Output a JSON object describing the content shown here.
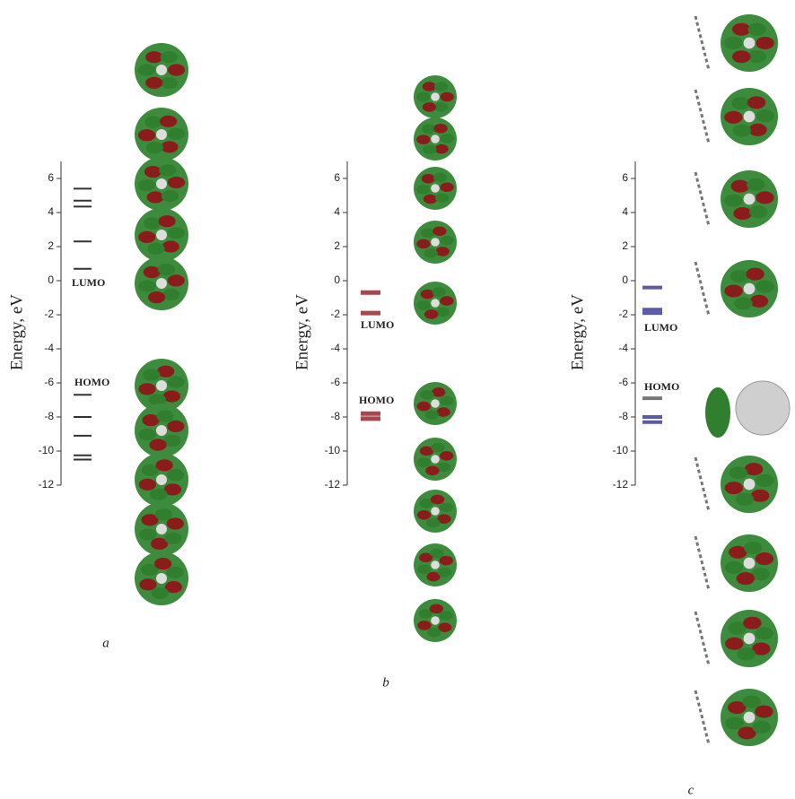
{
  "chart_data": [
    {
      "type": "energy-levels",
      "panel_label": "a",
      "ylabel": "Energy, eV",
      "lumo_label": "LUMO",
      "homo_label": "HOMO",
      "ylim": [
        -12,
        7
      ],
      "yticks": [
        6,
        4,
        2,
        0,
        -2,
        -4,
        -6,
        -8,
        -10,
        -12
      ],
      "values": [
        5.4,
        4.7,
        4.35,
        2.3,
        0.7,
        -6.7,
        -8.0,
        -9.1,
        -10.25,
        -10.5
      ],
      "colors": [
        "#333333",
        "#333333",
        "#333333",
        "#333333",
        "#333333",
        "#333333",
        "#333333",
        "#333333",
        "#333333",
        "#333333"
      ]
    },
    {
      "type": "energy-levels",
      "panel_label": "b",
      "ylabel": "Energy, eV",
      "lumo_label": "LUMO",
      "homo_label": "HOMO",
      "ylim": [
        -12,
        7
      ],
      "yticks": [
        6,
        4,
        2,
        0,
        -2,
        -4,
        -6,
        -8,
        -10,
        -12
      ],
      "values": [
        -0.7,
        -1.9,
        -7.8,
        -8.1
      ],
      "colors": [
        "#a8464f",
        "#a8464f",
        "#a8464f",
        "#a8464f"
      ]
    },
    {
      "type": "energy-levels",
      "panel_label": "c",
      "ylabel": "Energy, eV",
      "lumo_label": "LUMO",
      "homo_label": "HOMO",
      "ylim": [
        -12,
        7
      ],
      "yticks": [
        6,
        4,
        2,
        0,
        -2,
        -4,
        -6,
        -8,
        -10,
        -12
      ],
      "values": [
        -0.4,
        -1.7,
        -1.9,
        -6.9,
        -8.0,
        -8.3
      ],
      "colors": [
        "#5a5aa8",
        "#5a5aa8",
        "#5a5aa8",
        "#777777",
        "#5a5aa8",
        "#5a5aa8"
      ]
    }
  ]
}
